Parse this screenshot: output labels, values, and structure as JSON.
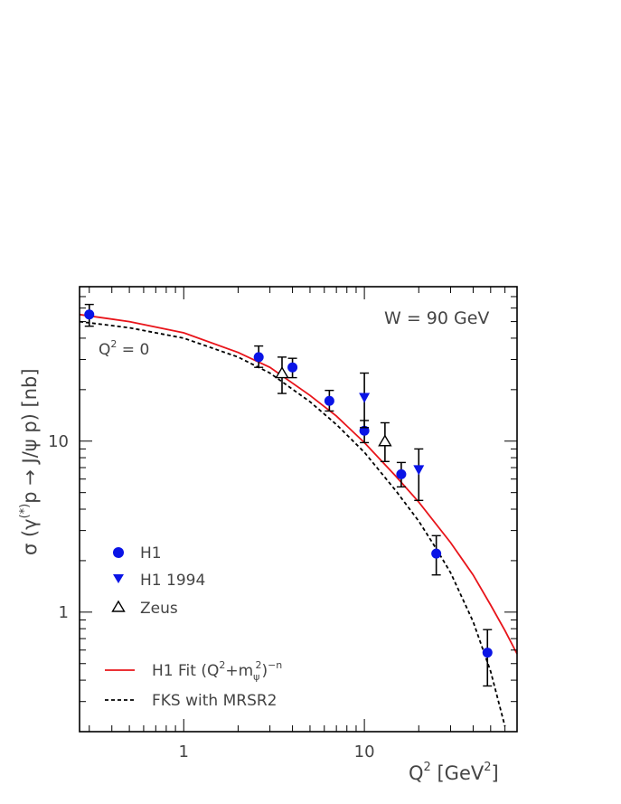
{
  "chart_data": {
    "type": "scatter",
    "annotations": {
      "energy": "W = 90 GeV",
      "photoproduction": "Q",
      "photoproduction_sup": "2",
      "photoproduction_tail": " = 0"
    },
    "xlabel": {
      "main": "Q",
      "sup1": "2",
      "mid": "  [GeV",
      "sup2": "2",
      "end": "]"
    },
    "ylabel": {
      "a": "σ (γ",
      "sup": "(*)",
      "b": "p  →  J/ψ p)  [nb]"
    },
    "xscale": "log",
    "yscale": "log",
    "xlim": [
      0.265,
      70
    ],
    "ylim": [
      0.2,
      80
    ],
    "xticks": [
      1,
      10
    ],
    "xtick_labels": [
      "1",
      "10"
    ],
    "yticks": [
      1,
      10
    ],
    "ytick_labels": [
      "1",
      "10"
    ],
    "grid": false,
    "legend_position": "bottom-left",
    "series": [
      {
        "name": "H1",
        "marker": "circle",
        "color": "#0a14e6",
        "points": [
          {
            "x": 0.3,
            "y": 55,
            "lo": 47,
            "hi": 63
          },
          {
            "x": 2.6,
            "y": 31,
            "lo": 27,
            "hi": 36
          },
          {
            "x": 4.0,
            "y": 27,
            "lo": 23.5,
            "hi": 30.5
          },
          {
            "x": 6.4,
            "y": 17.2,
            "lo": 15,
            "hi": 19.8
          },
          {
            "x": 10.0,
            "y": 11.5,
            "lo": 9.8,
            "hi": 13.2
          },
          {
            "x": 16.0,
            "y": 6.4,
            "lo": 5.4,
            "hi": 7.5
          },
          {
            "x": 25.0,
            "y": 2.2,
            "lo": 1.65,
            "hi": 2.8
          },
          {
            "x": 48.0,
            "y": 0.58,
            "lo": 0.37,
            "hi": 0.79
          }
        ]
      },
      {
        "name": "H1 1994",
        "marker": "triangle-down",
        "color": "#0a14e6",
        "points": [
          {
            "x": 10.0,
            "y": 18,
            "lo": 12,
            "hi": 25
          },
          {
            "x": 20.0,
            "y": 6.8,
            "lo": 4.5,
            "hi": 9.0
          }
        ]
      },
      {
        "name": "Zeus",
        "marker": "triangle-up-open",
        "color": "#000000",
        "points": [
          {
            "x": 3.5,
            "y": 25,
            "lo": 19,
            "hi": 31
          },
          {
            "x": 13.0,
            "y": 10.0,
            "lo": 7.6,
            "hi": 12.8
          }
        ]
      }
    ],
    "curves": [
      {
        "name": "H1 Fit (Q",
        "name_sup1": "2",
        "name_mid": "+m",
        "name_sub": "ψ",
        "name_sup2": "2",
        "name_close": ")",
        "name_sup3": "−n",
        "style": "solid",
        "color": "#e8141a",
        "x": [
          0.265,
          0.5,
          1,
          2,
          3,
          5,
          7,
          10,
          15,
          20,
          30,
          40,
          50,
          60,
          70
        ],
        "y": [
          55,
          50,
          43,
          33,
          27,
          18.5,
          14,
          9.8,
          6.2,
          4.4,
          2.55,
          1.65,
          1.1,
          0.78,
          0.57
        ]
      },
      {
        "name": "FKS with MRSR2",
        "style": "dashed",
        "color": "#000000",
        "x": [
          0.265,
          0.5,
          1,
          2,
          3,
          5,
          7,
          10,
          15,
          20,
          25,
          30,
          40,
          50,
          60
        ],
        "y": [
          50,
          46,
          40,
          31,
          25,
          17,
          12.5,
          8.6,
          5.1,
          3.4,
          2.35,
          1.7,
          0.88,
          0.45,
          0.215
        ]
      }
    ]
  }
}
